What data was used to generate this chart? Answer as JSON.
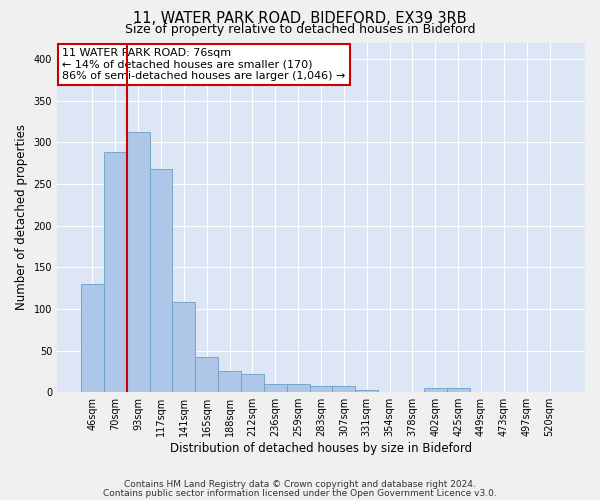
{
  "title1": "11, WATER PARK ROAD, BIDEFORD, EX39 3RB",
  "title2": "Size of property relative to detached houses in Bideford",
  "xlabel": "Distribution of detached houses by size in Bideford",
  "ylabel": "Number of detached properties",
  "categories": [
    "46sqm",
    "70sqm",
    "93sqm",
    "117sqm",
    "141sqm",
    "165sqm",
    "188sqm",
    "212sqm",
    "236sqm",
    "259sqm",
    "283sqm",
    "307sqm",
    "331sqm",
    "354sqm",
    "378sqm",
    "402sqm",
    "425sqm",
    "449sqm",
    "473sqm",
    "497sqm",
    "520sqm"
  ],
  "values": [
    130,
    288,
    313,
    268,
    108,
    42,
    25,
    22,
    10,
    10,
    7,
    7,
    3,
    0,
    0,
    5,
    5,
    0,
    0,
    0,
    0
  ],
  "bar_color": "#aec6e8",
  "bar_edge_color": "#6aa0c7",
  "background_color": "#dce6f5",
  "grid_color": "#ffffff",
  "vline_color": "#cc0000",
  "vline_x": 1.5,
  "annotation_text": "11 WATER PARK ROAD: 76sqm\n← 14% of detached houses are smaller (170)\n86% of semi-detached houses are larger (1,046) →",
  "annotation_box_color": "#cc0000",
  "footer1": "Contains HM Land Registry data © Crown copyright and database right 2024.",
  "footer2": "Contains public sector information licensed under the Open Government Licence v3.0.",
  "ylim": [
    0,
    420
  ],
  "yticks": [
    0,
    50,
    100,
    150,
    200,
    250,
    300,
    350,
    400
  ],
  "fig_bg": "#f0f0f0"
}
